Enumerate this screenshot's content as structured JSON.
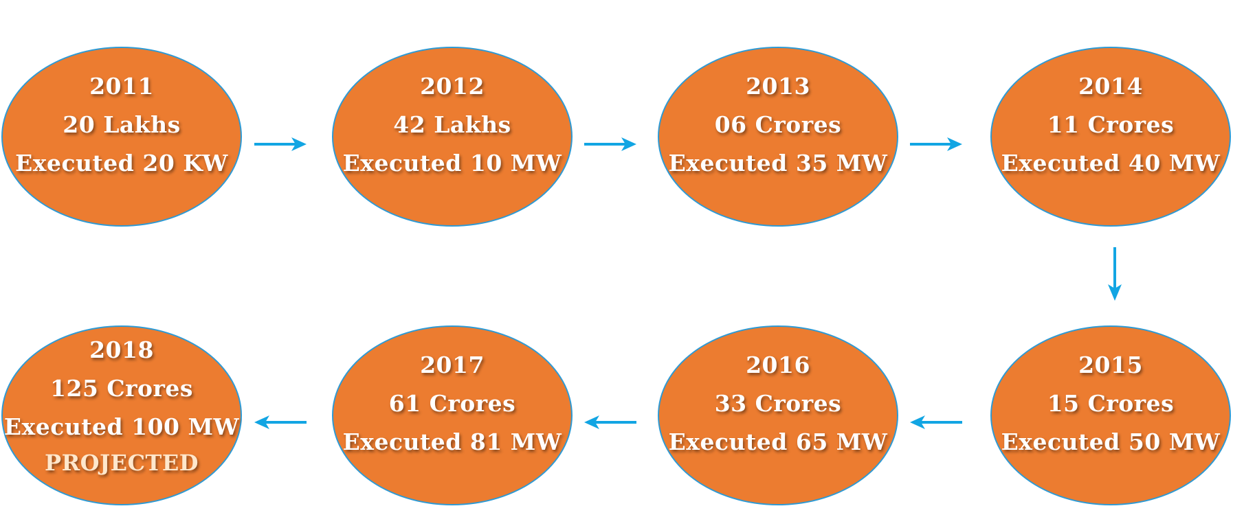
{
  "colors": {
    "node_fill": "#ec7c30",
    "node_border": "#2e9ad4",
    "arrow": "#12a5e3",
    "text": "#ffffff"
  },
  "nodes": [
    {
      "year": "2011",
      "amount": "20 Lakhs",
      "executed": "Executed 20 KW"
    },
    {
      "year": "2012",
      "amount": "42 Lakhs",
      "executed": "Executed 10 MW"
    },
    {
      "year": "2013",
      "amount": "06 Crores",
      "executed": "Executed 35 MW"
    },
    {
      "year": "2014",
      "amount": "11 Crores",
      "executed": "Executed 40 MW"
    },
    {
      "year": "2015",
      "amount": "15 Crores",
      "executed": "Executed 50 MW"
    },
    {
      "year": "2016",
      "amount": "33 Crores",
      "executed": "Executed 65 MW"
    },
    {
      "year": "2017",
      "amount": "61 Crores",
      "executed": "Executed 81 MW"
    },
    {
      "year": "2018",
      "amount": "125 Crores",
      "executed": "Executed 100 MW",
      "note": "PROJECTED"
    }
  ],
  "arrows": [
    {
      "direction": "right"
    },
    {
      "direction": "right"
    },
    {
      "direction": "right"
    },
    {
      "direction": "down"
    },
    {
      "direction": "left"
    },
    {
      "direction": "left"
    },
    {
      "direction": "left"
    }
  ]
}
